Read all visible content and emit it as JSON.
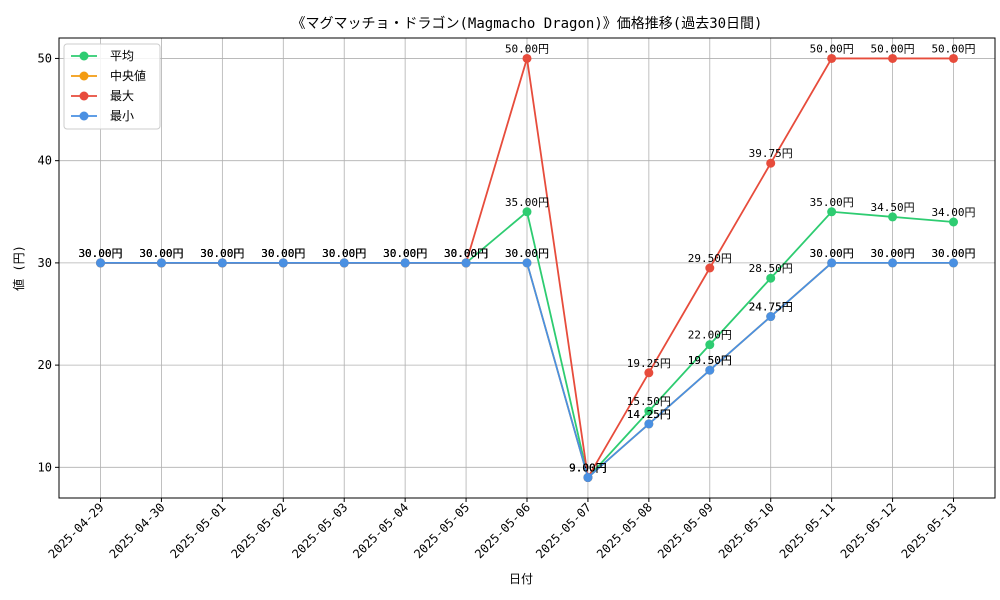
{
  "chart_data": {
    "type": "line",
    "title": "《マグマッチョ・ドラゴン(Magmacho Dragon)》価格推移(過去30日間)",
    "xlabel": "日付",
    "ylabel": "値 (円)",
    "ylim": [
      7,
      52
    ],
    "yticks": [
      10,
      20,
      30,
      40,
      50
    ],
    "grid": true,
    "legend_position": "top-left",
    "categories": [
      "2025-04-29",
      "2025-04-30",
      "2025-05-01",
      "2025-05-02",
      "2025-05-03",
      "2025-05-04",
      "2025-05-05",
      "2025-05-06",
      "2025-05-07",
      "2025-05-08",
      "2025-05-09",
      "2025-05-10",
      "2025-05-11",
      "2025-05-12",
      "2025-05-13"
    ],
    "series": [
      {
        "name": "平均",
        "color": "#2ecc71",
        "values": [
          30,
          30,
          30,
          30,
          30,
          30,
          30,
          35,
          9,
          15.5,
          22,
          28.5,
          35,
          34.5,
          34
        ]
      },
      {
        "name": "中央値",
        "color": "#f39c12",
        "values": [
          30,
          30,
          30,
          30,
          30,
          30,
          30,
          30,
          9,
          14.25,
          19.5,
          24.75,
          30,
          30,
          30
        ]
      },
      {
        "name": "最大",
        "color": "#e74c3c",
        "values": [
          30,
          30,
          30,
          30,
          30,
          30,
          30,
          50,
          9,
          19.25,
          29.5,
          39.75,
          50,
          50,
          50
        ]
      },
      {
        "name": "最小",
        "color": "#4a90e2",
        "values": [
          30,
          30,
          30,
          30,
          30,
          30,
          30,
          30,
          9,
          14.25,
          19.5,
          24.75,
          30,
          30,
          30
        ]
      }
    ],
    "label_suffix": "円"
  }
}
